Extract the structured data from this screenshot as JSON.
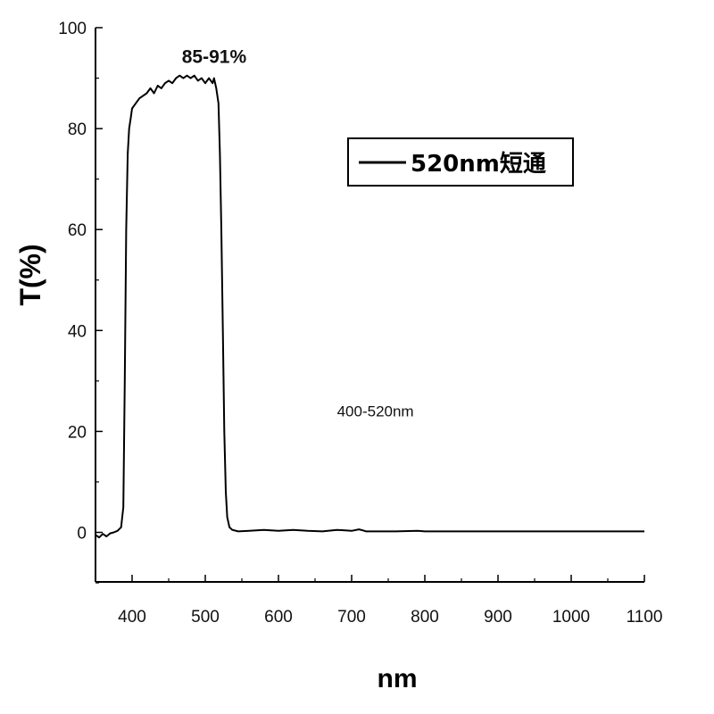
{
  "chart_data": {
    "type": "line",
    "xlabel": "nm",
    "ylabel": "T(%)",
    "xlim": [
      350,
      1100
    ],
    "ylim": [
      -10,
      100
    ],
    "x_ticks": [
      400,
      500,
      600,
      700,
      800,
      900,
      1000,
      1100
    ],
    "y_ticks": [
      0,
      20,
      40,
      60,
      80,
      100
    ],
    "grid": false,
    "legend_position": "top-right",
    "series": [
      {
        "name": "520nm短通",
        "color": "#000000",
        "points": [
          [
            350,
            -0.5
          ],
          [
            355,
            -1.0
          ],
          [
            360,
            -0.3
          ],
          [
            365,
            -0.8
          ],
          [
            370,
            -0.2
          ],
          [
            375,
            0.0
          ],
          [
            380,
            0.3
          ],
          [
            385,
            1.0
          ],
          [
            388,
            5.0
          ],
          [
            390,
            30.0
          ],
          [
            392,
            60.0
          ],
          [
            394,
            75.0
          ],
          [
            396,
            80.0
          ],
          [
            398,
            82.0
          ],
          [
            400,
            84.0
          ],
          [
            405,
            85.0
          ],
          [
            410,
            86.0
          ],
          [
            415,
            86.5
          ],
          [
            420,
            87.0
          ],
          [
            425,
            88.0
          ],
          [
            430,
            87.0
          ],
          [
            435,
            88.5
          ],
          [
            440,
            88.0
          ],
          [
            445,
            89.0
          ],
          [
            450,
            89.5
          ],
          [
            455,
            89.0
          ],
          [
            460,
            90.0
          ],
          [
            465,
            90.5
          ],
          [
            470,
            90.0
          ],
          [
            475,
            90.5
          ],
          [
            480,
            90.0
          ],
          [
            485,
            90.5
          ],
          [
            490,
            89.5
          ],
          [
            495,
            90.0
          ],
          [
            500,
            89.0
          ],
          [
            505,
            90.0
          ],
          [
            510,
            89.0
          ],
          [
            512,
            90.0
          ],
          [
            515,
            88.0
          ],
          [
            518,
            85.0
          ],
          [
            520,
            75.0
          ],
          [
            522,
            60.0
          ],
          [
            524,
            40.0
          ],
          [
            526,
            20.0
          ],
          [
            528,
            8.0
          ],
          [
            530,
            3.0
          ],
          [
            533,
            1.0
          ],
          [
            537,
            0.5
          ],
          [
            545,
            0.2
          ],
          [
            560,
            0.3
          ],
          [
            580,
            0.5
          ],
          [
            600,
            0.3
          ],
          [
            620,
            0.5
          ],
          [
            640,
            0.3
          ],
          [
            660,
            0.2
          ],
          [
            680,
            0.5
          ],
          [
            700,
            0.3
          ],
          [
            710,
            0.6
          ],
          [
            715,
            0.4
          ],
          [
            720,
            0.2
          ],
          [
            740,
            0.2
          ],
          [
            760,
            0.2
          ],
          [
            790,
            0.3
          ],
          [
            800,
            0.2
          ],
          [
            850,
            0.2
          ],
          [
            900,
            0.2
          ],
          [
            950,
            0.2
          ],
          [
            1000,
            0.2
          ],
          [
            1050,
            0.2
          ],
          [
            1100,
            0.2
          ]
        ]
      }
    ],
    "annotations": [
      {
        "text": "85-91%",
        "x": 468,
        "y": 93,
        "style": "bold"
      },
      {
        "text": "400-520nm",
        "x": 680,
        "y": 23,
        "style": "normal"
      }
    ]
  }
}
